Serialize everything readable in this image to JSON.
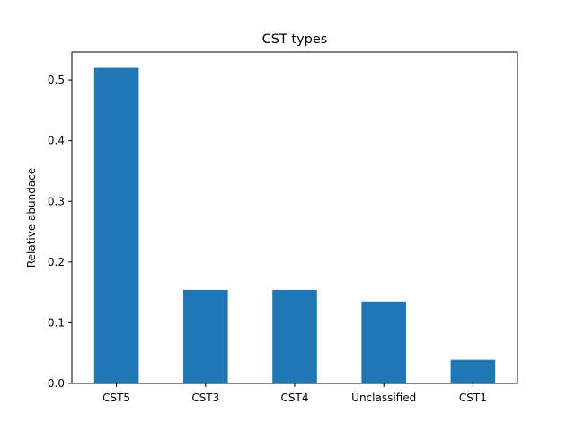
{
  "chart_data": {
    "type": "bar",
    "title": "CST types",
    "xlabel": "",
    "ylabel": "Relative abundace",
    "categories": [
      "CST5",
      "CST3",
      "CST4",
      "Unclassified",
      "CST1"
    ],
    "values": [
      0.52,
      0.154,
      0.154,
      0.135,
      0.039
    ],
    "ylim": [
      0,
      0.546
    ],
    "yticks": [
      0.0,
      0.1,
      0.2,
      0.3,
      0.4,
      0.5
    ],
    "ytick_labels": [
      "0.0",
      "0.1",
      "0.2",
      "0.3",
      "0.4",
      "0.5"
    ],
    "bar_color": "#1f77b4",
    "grid": false,
    "legend": false
  }
}
